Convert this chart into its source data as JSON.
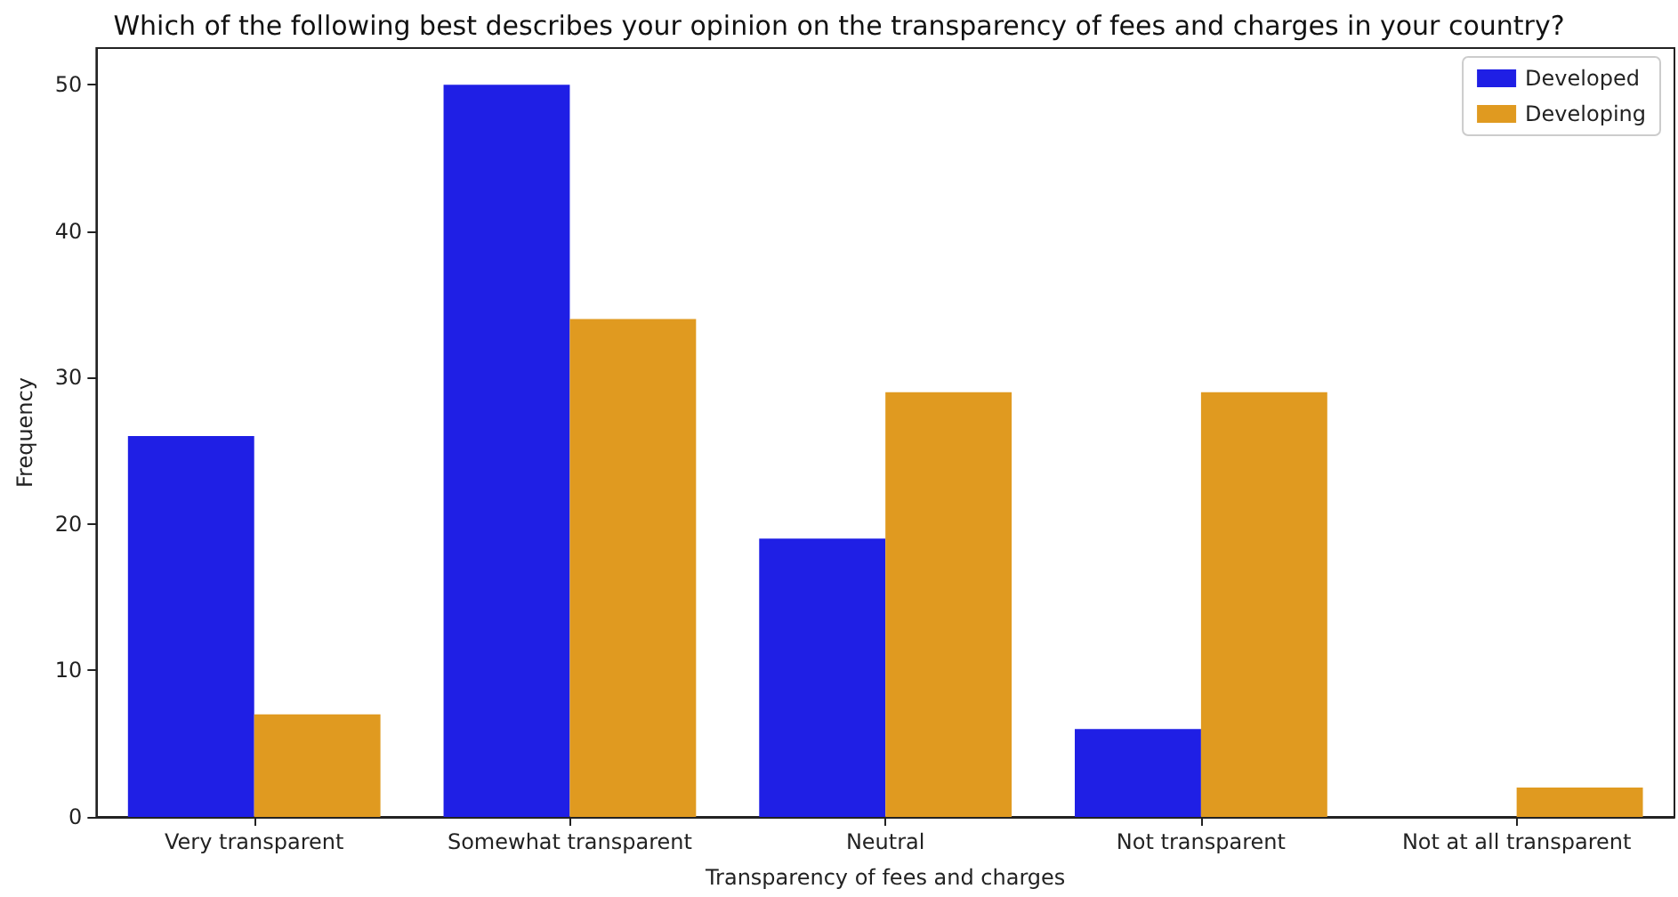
{
  "chart_data": {
    "type": "bar",
    "title": "Which of the following best describes your opinion on the transparency of fees and charges in your country?",
    "xlabel": "Transparency of fees and charges",
    "ylabel": "Frequency",
    "categories": [
      "Very transparent",
      "Somewhat transparent",
      "Neutral",
      "Not transparent",
      "Not at all transparent"
    ],
    "series": [
      {
        "name": "Developed",
        "color": "#1f1fe5",
        "values": [
          26,
          50,
          19,
          6,
          0
        ]
      },
      {
        "name": "Developing",
        "color": "#e09a20",
        "values": [
          7,
          34,
          29,
          29,
          2
        ]
      }
    ],
    "ylim": [
      0,
      52.5
    ],
    "yticks": [
      0,
      10,
      20,
      30,
      40,
      50
    ],
    "grid": false,
    "legend": "top right"
  }
}
